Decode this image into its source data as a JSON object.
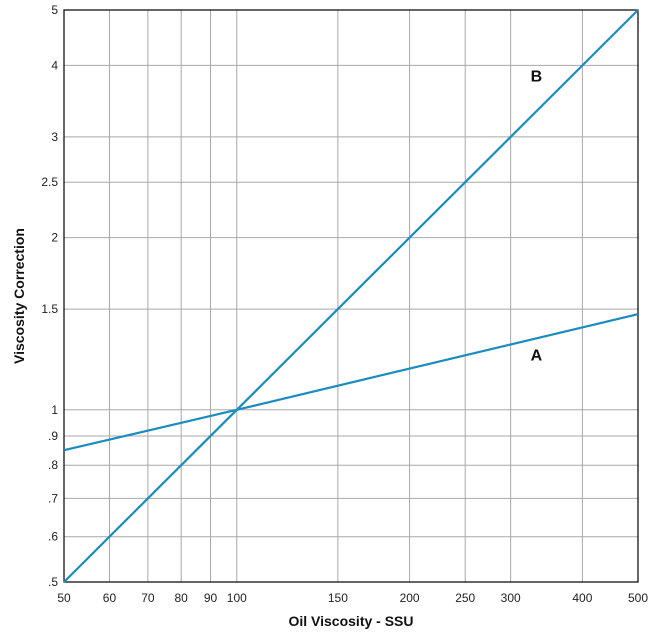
{
  "chart_data": {
    "type": "line",
    "xlabel": "Oil Viscosity - SSU",
    "ylabel": "Viscosity Correction",
    "x_scale": "log",
    "y_scale": "log",
    "xlim": [
      50,
      500
    ],
    "ylim": [
      0.5,
      5
    ],
    "grid": true,
    "x_ticks": [
      {
        "value": 50,
        "label": "50"
      },
      {
        "value": 60,
        "label": "60"
      },
      {
        "value": 70,
        "label": "70"
      },
      {
        "value": 80,
        "label": "80"
      },
      {
        "value": 90,
        "label": "90"
      },
      {
        "value": 100,
        "label": "100"
      },
      {
        "value": 150,
        "label": "150"
      },
      {
        "value": 200,
        "label": "200"
      },
      {
        "value": 250,
        "label": "250"
      },
      {
        "value": 300,
        "label": "300"
      },
      {
        "value": 400,
        "label": "400"
      },
      {
        "value": 500,
        "label": "500"
      }
    ],
    "y_ticks": [
      {
        "value": 0.5,
        "label": ".5"
      },
      {
        "value": 0.6,
        "label": ".6"
      },
      {
        "value": 0.7,
        "label": ".7"
      },
      {
        "value": 0.8,
        "label": ".8"
      },
      {
        "value": 0.9,
        "label": ".9"
      },
      {
        "value": 1,
        "label": "1"
      },
      {
        "value": 1.5,
        "label": "1.5"
      },
      {
        "value": 2,
        "label": "2"
      },
      {
        "value": 2.5,
        "label": "2.5"
      },
      {
        "value": 3,
        "label": "3"
      },
      {
        "value": 4,
        "label": "4"
      },
      {
        "value": 5,
        "label": "5"
      }
    ],
    "series": [
      {
        "name": "A",
        "color": "#1a8cbf",
        "x": [
          50,
          100,
          500
        ],
        "y": [
          0.85,
          1.0,
          1.47
        ]
      },
      {
        "name": "B",
        "color": "#1a8cbf",
        "x": [
          50,
          100,
          500
        ],
        "y": [
          0.5,
          1.0,
          5.0
        ]
      }
    ],
    "annotations": [
      {
        "text": "A",
        "x": 325,
        "y": 1.22
      },
      {
        "text": "B",
        "x": 325,
        "y": 3.75
      }
    ]
  }
}
